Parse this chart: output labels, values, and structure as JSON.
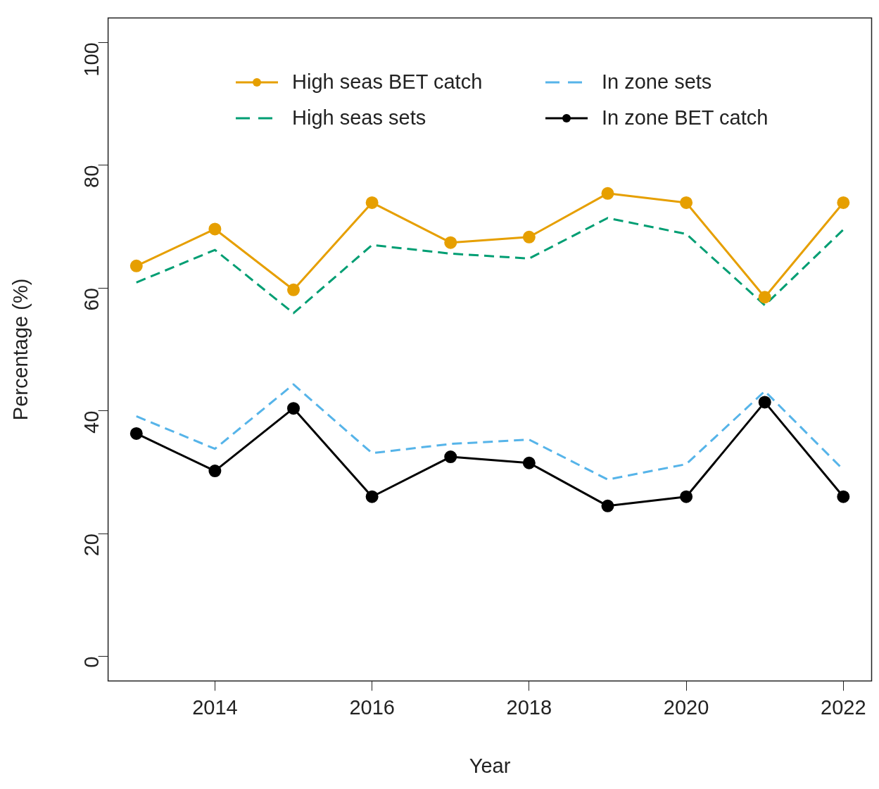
{
  "chart_data": {
    "type": "line",
    "xlabel": "Year",
    "ylabel": "Percentage (%)",
    "x": [
      2013,
      2014,
      2015,
      2016,
      2017,
      2018,
      2019,
      2020,
      2021,
      2022
    ],
    "xlim": [
      2012.64,
      2022.36
    ],
    "xticks": [
      2014,
      2016,
      2018,
      2020,
      2022
    ],
    "ylim": [
      -4,
      104
    ],
    "yticks": [
      0,
      20,
      40,
      60,
      80,
      100
    ],
    "grid": false,
    "legend": "top",
    "series": [
      {
        "name": "High seas BET catch",
        "color": "#e69f00",
        "marker": "circle",
        "line_style": "solid",
        "values": [
          63.6,
          69.6,
          59.7,
          73.9,
          67.4,
          68.3,
          75.4,
          73.9,
          58.5,
          73.9
        ]
      },
      {
        "name": "High seas sets",
        "color": "#009e73",
        "marker": "none",
        "line_style": "dashed",
        "values": [
          60.9,
          66.2,
          55.9,
          67.0,
          65.6,
          64.8,
          71.4,
          68.8,
          57.2,
          69.5
        ]
      },
      {
        "name": "In zone sets",
        "color": "#56b4e9",
        "marker": "none",
        "line_style": "dashed",
        "values": [
          39.1,
          33.8,
          44.3,
          33.1,
          34.6,
          35.3,
          28.8,
          31.3,
          43.2,
          30.4
        ]
      },
      {
        "name": "In zone BET catch",
        "color": "#000000",
        "marker": "circle",
        "line_style": "solid",
        "values": [
          36.3,
          30.2,
          40.4,
          26.0,
          32.5,
          31.5,
          24.5,
          26.0,
          41.4,
          26.0
        ]
      }
    ]
  }
}
